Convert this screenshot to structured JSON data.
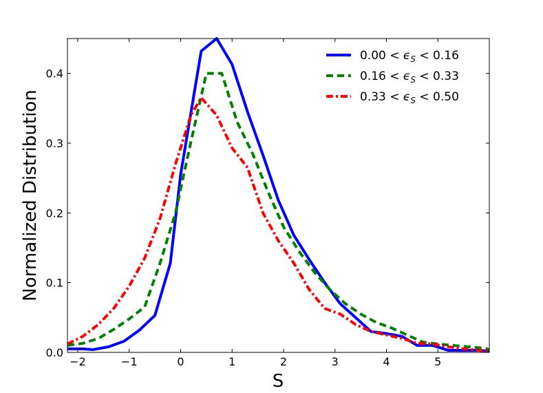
{
  "chart_data": {
    "type": "line",
    "xlabel": "S",
    "ylabel": "Normalized Distribution",
    "xlim": [
      -2.2,
      6.0
    ],
    "ylim": [
      0.0,
      0.45
    ],
    "xticks": [
      -2,
      -1,
      0,
      1,
      2,
      3,
      4,
      5
    ],
    "xtick_labels": [
      "−2",
      "−1",
      "0",
      "1",
      "2",
      "3",
      "4",
      "5"
    ],
    "yticks": [
      0.0,
      0.1,
      0.2,
      0.3,
      0.4
    ],
    "ytick_labels": [
      "0.0",
      "0.1",
      "0.2",
      "0.3",
      "0.4"
    ],
    "grid": false,
    "legend_position": "top-right",
    "series": [
      {
        "name": "0.00 < ϵS < 0.16",
        "legend_parts": [
          "0.00 < ",
          "ϵ",
          "S",
          " < 0.16"
        ],
        "color": "#0000ff",
        "style": "solid",
        "x": [
          -2.2,
          -1.9,
          -1.7,
          -1.4,
          -1.1,
          -0.8,
          -0.5,
          -0.2,
          0.0,
          0.4,
          0.7,
          1.0,
          1.3,
          1.6,
          1.9,
          2.2,
          2.5,
          2.8,
          3.1,
          3.4,
          3.7,
          4.0,
          4.3,
          4.6,
          4.9,
          5.2,
          5.5,
          5.8,
          6.0
        ],
        "y": [
          0.005,
          0.005,
          0.004,
          0.008,
          0.016,
          0.032,
          0.053,
          0.128,
          0.255,
          0.432,
          0.45,
          0.413,
          0.345,
          0.283,
          0.218,
          0.168,
          0.133,
          0.1,
          0.07,
          0.05,
          0.03,
          0.027,
          0.023,
          0.01,
          0.01,
          0.003,
          0.003,
          0.003,
          0.002
        ]
      },
      {
        "name": "0.16 < ϵS < 0.33",
        "legend_parts": [
          "0.16 < ",
          "ϵ",
          "S",
          " < 0.33"
        ],
        "color": "#008000",
        "style": "dashed",
        "x": [
          -2.2,
          -1.9,
          -1.6,
          -1.3,
          -1.0,
          -0.7,
          -0.4,
          -0.1,
          0.2,
          0.5,
          0.8,
          1.1,
          1.4,
          1.7,
          2.0,
          2.3,
          2.6,
          2.9,
          3.2,
          3.5,
          3.8,
          4.1,
          4.4,
          4.7,
          5.0,
          5.3,
          5.6,
          5.9,
          6.0
        ],
        "y": [
          0.01,
          0.013,
          0.02,
          0.033,
          0.048,
          0.065,
          0.128,
          0.2,
          0.302,
          0.4,
          0.4,
          0.33,
          0.285,
          0.23,
          0.18,
          0.145,
          0.115,
          0.09,
          0.07,
          0.055,
          0.043,
          0.035,
          0.025,
          0.015,
          0.012,
          0.01,
          0.008,
          0.006,
          0.004
        ]
      },
      {
        "name": "0.33 < ϵS < 0.50",
        "legend_parts": [
          "0.33 < ",
          "ϵ",
          "S",
          " < 0.50"
        ],
        "color": "#ff0000",
        "style": "dashdot",
        "x": [
          -2.2,
          -1.9,
          -1.6,
          -1.3,
          -1.0,
          -0.7,
          -0.4,
          -0.1,
          0.2,
          0.4,
          0.7,
          1.0,
          1.3,
          1.6,
          1.9,
          2.2,
          2.5,
          2.8,
          3.1,
          3.4,
          3.7,
          4.0,
          4.3,
          4.6,
          4.9,
          5.2,
          5.5,
          5.8,
          6.0
        ],
        "y": [
          0.012,
          0.023,
          0.04,
          0.063,
          0.095,
          0.135,
          0.192,
          0.27,
          0.34,
          0.365,
          0.34,
          0.293,
          0.265,
          0.2,
          0.16,
          0.128,
          0.09,
          0.063,
          0.055,
          0.04,
          0.03,
          0.025,
          0.02,
          0.013,
          0.012,
          0.008,
          0.005,
          0.003,
          0.002
        ]
      }
    ]
  }
}
